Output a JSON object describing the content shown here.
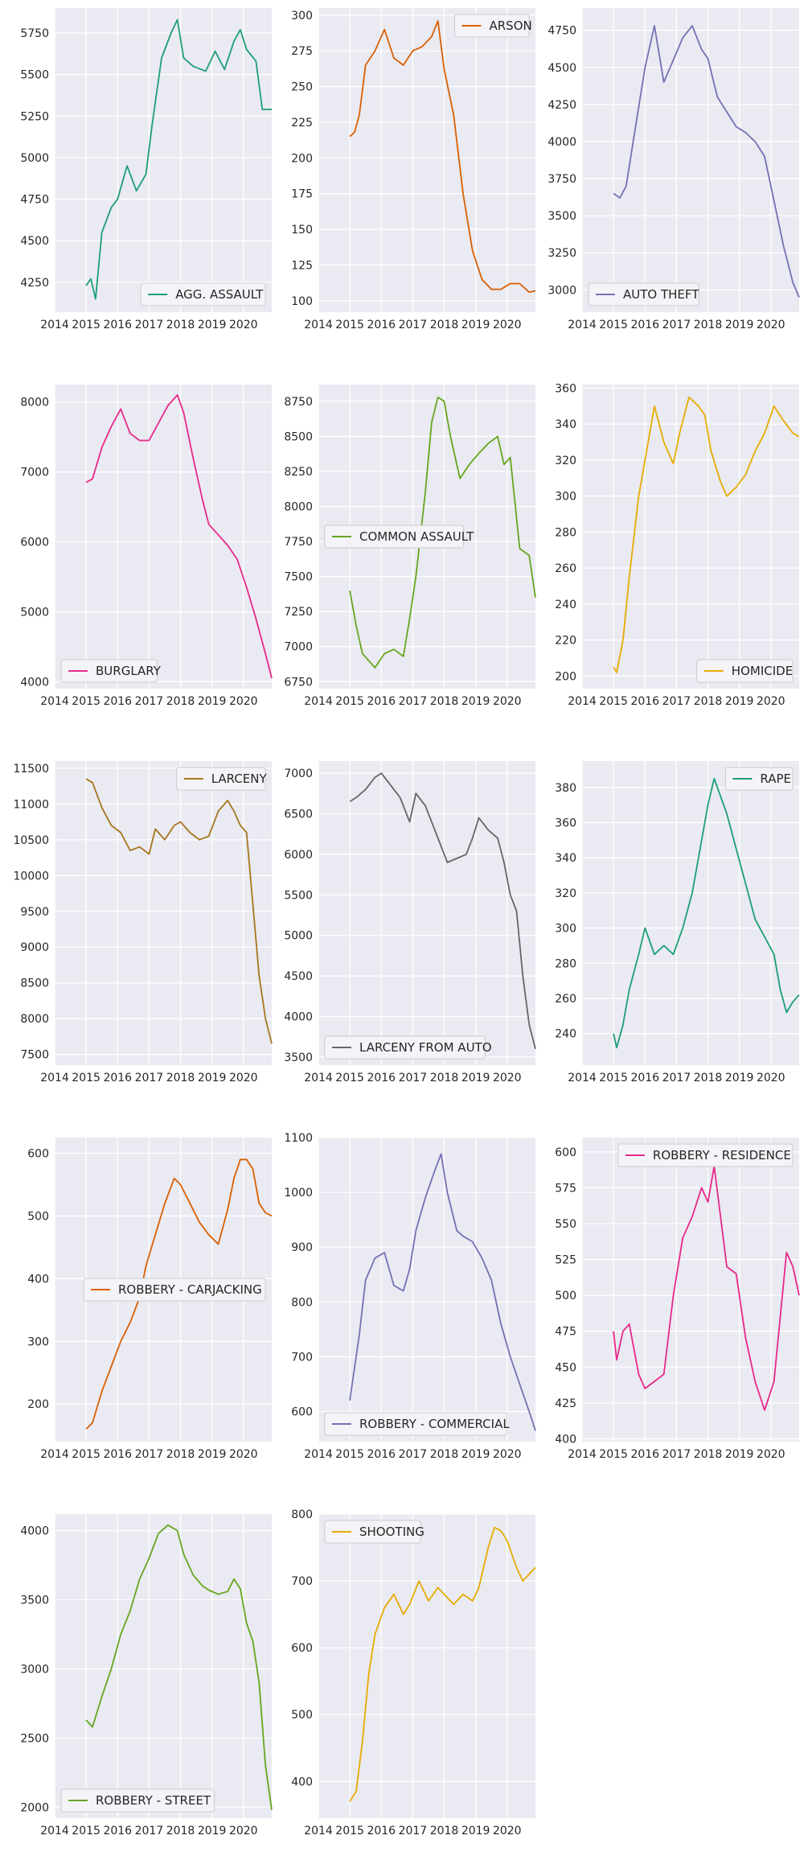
{
  "chart_data": [
    {
      "type": "line",
      "legend": "AGG. ASSAULT",
      "legend_loc": "lower right",
      "color": "#1b9e77",
      "xlim": [
        2014,
        2020.9
      ],
      "ylim": [
        4070,
        5900
      ],
      "xticks": [
        2014,
        2015,
        2016,
        2017,
        2018,
        2019,
        2020
      ],
      "yticks": [
        4250,
        4500,
        4750,
        5000,
        5250,
        5500,
        5750
      ],
      "x": [
        2015.0,
        2015.15,
        2015.3,
        2015.5,
        2015.8,
        2016.0,
        2016.3,
        2016.6,
        2016.9,
        2017.1,
        2017.4,
        2017.7,
        2017.9,
        2018.1,
        2018.4,
        2018.8,
        2019.1,
        2019.4,
        2019.7,
        2019.9,
        2020.1,
        2020.4,
        2020.6,
        2020.9
      ],
      "y": [
        4230,
        4270,
        4150,
        4550,
        4700,
        4750,
        4950,
        4800,
        4900,
        5200,
        5600,
        5750,
        5830,
        5600,
        5550,
        5520,
        5640,
        5530,
        5700,
        5770,
        5650,
        5580,
        5290,
        5290
      ]
    },
    {
      "type": "line",
      "legend": "ARSON",
      "legend_loc": "upper right",
      "color": "#d95f02",
      "xlim": [
        2014,
        2020.9
      ],
      "ylim": [
        92,
        305
      ],
      "xticks": [
        2014,
        2015,
        2016,
        2017,
        2018,
        2019,
        2020
      ],
      "yticks": [
        100,
        125,
        150,
        175,
        200,
        225,
        250,
        275,
        300
      ],
      "x": [
        2015.0,
        2015.15,
        2015.3,
        2015.5,
        2015.8,
        2016.1,
        2016.4,
        2016.7,
        2017.0,
        2017.3,
        2017.6,
        2017.8,
        2018.0,
        2018.3,
        2018.6,
        2018.9,
        2019.2,
        2019.5,
        2019.8,
        2020.1,
        2020.4,
        2020.7,
        2020.9
      ],
      "y": [
        215,
        218,
        230,
        265,
        275,
        290,
        270,
        265,
        275,
        278,
        285,
        296,
        262,
        230,
        175,
        135,
        115,
        108,
        108,
        112,
        112,
        106,
        107
      ]
    },
    {
      "type": "line",
      "legend": "AUTO THEFT",
      "legend_loc": "lower left",
      "color": "#7570b3",
      "xlim": [
        2014,
        2020.9
      ],
      "ylim": [
        2850,
        4900
      ],
      "xticks": [
        2014,
        2015,
        2016,
        2017,
        2018,
        2019,
        2020
      ],
      "yticks": [
        3000,
        3250,
        3500,
        3750,
        4000,
        4250,
        4500,
        4750
      ],
      "x": [
        2015.0,
        2015.2,
        2015.4,
        2015.7,
        2016.0,
        2016.3,
        2016.6,
        2016.9,
        2017.2,
        2017.5,
        2017.8,
        2018.0,
        2018.3,
        2018.6,
        2018.9,
        2019.2,
        2019.5,
        2019.8,
        2020.1,
        2020.4,
        2020.7,
        2020.9
      ],
      "y": [
        3650,
        3620,
        3700,
        4100,
        4500,
        4780,
        4400,
        4550,
        4700,
        4780,
        4620,
        4560,
        4300,
        4200,
        4100,
        4060,
        4000,
        3900,
        3600,
        3300,
        3050,
        2950
      ]
    },
    {
      "type": "line",
      "legend": "BURGLARY",
      "legend_loc": "lower left",
      "color": "#e7298a",
      "xlim": [
        2014,
        2020.9
      ],
      "ylim": [
        3900,
        8250
      ],
      "xticks": [
        2014,
        2015,
        2016,
        2017,
        2018,
        2019,
        2020
      ],
      "yticks": [
        4000,
        5000,
        6000,
        7000,
        8000
      ],
      "x": [
        2015.0,
        2015.2,
        2015.5,
        2015.8,
        2016.1,
        2016.4,
        2016.7,
        2017.0,
        2017.3,
        2017.6,
        2017.9,
        2018.1,
        2018.4,
        2018.7,
        2018.9,
        2019.2,
        2019.5,
        2019.8,
        2020.1,
        2020.4,
        2020.7,
        2020.9
      ],
      "y": [
        6850,
        6900,
        7350,
        7650,
        7900,
        7550,
        7450,
        7450,
        7700,
        7950,
        8100,
        7850,
        7200,
        6600,
        6250,
        6100,
        5950,
        5750,
        5350,
        4900,
        4400,
        4050
      ]
    },
    {
      "type": "line",
      "legend": "COMMON ASSAULT",
      "legend_loc": "center left",
      "color": "#66a61e",
      "xlim": [
        2014,
        2020.9
      ],
      "ylim": [
        6700,
        8870
      ],
      "xticks": [
        2014,
        2015,
        2016,
        2017,
        2018,
        2019,
        2020
      ],
      "yticks": [
        6750,
        7000,
        7250,
        7500,
        7750,
        8000,
        8250,
        8500,
        8750
      ],
      "x": [
        2015.0,
        2015.2,
        2015.4,
        2015.6,
        2015.8,
        2016.1,
        2016.4,
        2016.7,
        2016.9,
        2017.1,
        2017.4,
        2017.6,
        2017.8,
        2018.0,
        2018.2,
        2018.5,
        2018.8,
        2019.1,
        2019.4,
        2019.7,
        2019.9,
        2020.1,
        2020.4,
        2020.7,
        2020.9
      ],
      "y": [
        7400,
        7150,
        6950,
        6900,
        6850,
        6950,
        6980,
        6930,
        7200,
        7500,
        8100,
        8600,
        8780,
        8750,
        8500,
        8200,
        8300,
        8380,
        8450,
        8500,
        8300,
        8350,
        7700,
        7650,
        7350
      ]
    },
    {
      "type": "line",
      "legend": "HOMICIDE",
      "legend_loc": "lower right",
      "color": "#e6ab02",
      "xlim": [
        2014,
        2020.9
      ],
      "ylim": [
        193,
        362
      ],
      "xticks": [
        2014,
        2015,
        2016,
        2017,
        2018,
        2019,
        2020
      ],
      "yticks": [
        200,
        220,
        240,
        260,
        280,
        300,
        320,
        340,
        360
      ],
      "x": [
        2015.0,
        2015.1,
        2015.3,
        2015.5,
        2015.8,
        2016.1,
        2016.3,
        2016.6,
        2016.9,
        2017.1,
        2017.4,
        2017.7,
        2017.9,
        2018.1,
        2018.4,
        2018.6,
        2018.9,
        2019.2,
        2019.5,
        2019.8,
        2020.1,
        2020.4,
        2020.7,
        2020.9
      ],
      "y": [
        205,
        202,
        220,
        255,
        300,
        330,
        350,
        330,
        318,
        335,
        355,
        350,
        345,
        325,
        308,
        300,
        305,
        312,
        325,
        335,
        350,
        342,
        335,
        333
      ]
    },
    {
      "type": "line",
      "legend": "LARCENY",
      "legend_loc": "upper right",
      "color": "#a6761d",
      "xlim": [
        2014,
        2020.9
      ],
      "ylim": [
        7350,
        11600
      ],
      "xticks": [
        2014,
        2015,
        2016,
        2017,
        2018,
        2019,
        2020
      ],
      "yticks": [
        7500,
        8000,
        8500,
        9000,
        9500,
        10000,
        10500,
        11000,
        11500
      ],
      "x": [
        2015.0,
        2015.2,
        2015.5,
        2015.8,
        2016.1,
        2016.4,
        2016.7,
        2017.0,
        2017.2,
        2017.5,
        2017.8,
        2018.0,
        2018.3,
        2018.6,
        2018.9,
        2019.2,
        2019.5,
        2019.7,
        2019.9,
        2020.1,
        2020.3,
        2020.5,
        2020.7,
        2020.9
      ],
      "y": [
        11350,
        11300,
        10950,
        10700,
        10600,
        10350,
        10400,
        10300,
        10650,
        10500,
        10700,
        10750,
        10600,
        10500,
        10550,
        10900,
        11050,
        10900,
        10700,
        10600,
        9600,
        8600,
        8000,
        7650
      ]
    },
    {
      "type": "line",
      "legend": "LARCENY FROM AUTO",
      "legend_loc": "lower left",
      "color": "#666666",
      "xlim": [
        2014,
        2020.9
      ],
      "ylim": [
        3400,
        7150
      ],
      "xticks": [
        2014,
        2015,
        2016,
        2017,
        2018,
        2019,
        2020
      ],
      "yticks": [
        3500,
        4000,
        4500,
        5000,
        5500,
        6000,
        6500,
        7000
      ],
      "x": [
        2015.0,
        2015.2,
        2015.5,
        2015.8,
        2016.0,
        2016.3,
        2016.6,
        2016.9,
        2017.1,
        2017.4,
        2017.7,
        2017.9,
        2018.1,
        2018.4,
        2018.7,
        2018.9,
        2019.1,
        2019.4,
        2019.7,
        2019.9,
        2020.1,
        2020.3,
        2020.5,
        2020.7,
        2020.9
      ],
      "y": [
        6650,
        6700,
        6800,
        6950,
        7000,
        6850,
        6700,
        6400,
        6750,
        6600,
        6300,
        6100,
        5900,
        5950,
        6000,
        6200,
        6450,
        6300,
        6200,
        5900,
        5500,
        5300,
        4500,
        3900,
        3600
      ]
    },
    {
      "type": "line",
      "legend": "RAPE",
      "legend_loc": "upper right",
      "color": "#1b9e77",
      "xlim": [
        2014,
        2020.9
      ],
      "ylim": [
        222,
        395
      ],
      "xticks": [
        2014,
        2015,
        2016,
        2017,
        2018,
        2019,
        2020
      ],
      "yticks": [
        240,
        260,
        280,
        300,
        320,
        340,
        360,
        380
      ],
      "x": [
        2015.0,
        2015.1,
        2015.3,
        2015.5,
        2015.8,
        2016.0,
        2016.3,
        2016.6,
        2016.9,
        2017.2,
        2017.5,
        2017.8,
        2018.0,
        2018.2,
        2018.4,
        2018.6,
        2018.9,
        2019.2,
        2019.5,
        2019.8,
        2020.1,
        2020.3,
        2020.5,
        2020.7,
        2020.9
      ],
      "y": [
        240,
        232,
        245,
        265,
        285,
        300,
        285,
        290,
        285,
        300,
        320,
        350,
        370,
        385,
        375,
        365,
        345,
        325,
        305,
        295,
        285,
        265,
        252,
        258,
        262
      ]
    },
    {
      "type": "line",
      "legend": "ROBBERY - CARJACKING",
      "legend_loc": "center right",
      "color": "#d95f02",
      "xlim": [
        2014,
        2020.9
      ],
      "ylim": [
        140,
        625
      ],
      "xticks": [
        2014,
        2015,
        2016,
        2017,
        2018,
        2019,
        2020
      ],
      "yticks": [
        200,
        300,
        400,
        500,
        600
      ],
      "x": [
        2015.0,
        2015.2,
        2015.5,
        2015.8,
        2016.1,
        2016.4,
        2016.7,
        2016.9,
        2017.2,
        2017.5,
        2017.8,
        2018.0,
        2018.3,
        2018.6,
        2018.9,
        2019.2,
        2019.5,
        2019.7,
        2019.9,
        2020.1,
        2020.3,
        2020.5,
        2020.7,
        2020.9
      ],
      "y": [
        160,
        170,
        220,
        260,
        300,
        330,
        370,
        420,
        470,
        520,
        560,
        550,
        520,
        490,
        470,
        455,
        510,
        560,
        590,
        590,
        575,
        520,
        505,
        500
      ]
    },
    {
      "type": "line",
      "legend": "ROBBERY - COMMERCIAL",
      "legend_loc": "lower left",
      "color": "#7570b3",
      "xlim": [
        2014,
        2020.9
      ],
      "ylim": [
        545,
        1100
      ],
      "xticks": [
        2014,
        2015,
        2016,
        2017,
        2018,
        2019,
        2020
      ],
      "yticks": [
        600,
        700,
        800,
        900,
        1000,
        1100
      ],
      "x": [
        2015.0,
        2015.1,
        2015.3,
        2015.5,
        2015.8,
        2016.1,
        2016.4,
        2016.7,
        2016.9,
        2017.1,
        2017.4,
        2017.7,
        2017.9,
        2018.1,
        2018.4,
        2018.6,
        2018.9,
        2019.2,
        2019.5,
        2019.8,
        2020.1,
        2020.4,
        2020.7,
        2020.9
      ],
      "y": [
        620,
        660,
        740,
        840,
        880,
        890,
        830,
        820,
        860,
        930,
        990,
        1040,
        1070,
        1000,
        930,
        920,
        910,
        880,
        840,
        760,
        700,
        650,
        600,
        565
      ]
    },
    {
      "type": "line",
      "legend": "ROBBERY - RESIDENCE",
      "legend_loc": "upper right",
      "color": "#e7298a",
      "xlim": [
        2014,
        2020.9
      ],
      "ylim": [
        398,
        610
      ],
      "xticks": [
        2014,
        2015,
        2016,
        2017,
        2018,
        2019,
        2020
      ],
      "yticks": [
        400,
        425,
        450,
        475,
        500,
        525,
        550,
        575,
        600
      ],
      "x": [
        2015.0,
        2015.1,
        2015.3,
        2015.5,
        2015.8,
        2016.0,
        2016.3,
        2016.6,
        2016.9,
        2017.2,
        2017.5,
        2017.8,
        2018.0,
        2018.2,
        2018.4,
        2018.6,
        2018.9,
        2019.2,
        2019.5,
        2019.8,
        2020.1,
        2020.3,
        2020.5,
        2020.7,
        2020.9
      ],
      "y": [
        475,
        455,
        475,
        480,
        445,
        435,
        440,
        445,
        500,
        540,
        555,
        575,
        565,
        590,
        555,
        520,
        515,
        470,
        440,
        420,
        440,
        485,
        530,
        520,
        500
      ]
    },
    {
      "type": "line",
      "legend": "ROBBERY - STREET",
      "legend_loc": "lower left",
      "color": "#66a61e",
      "xlim": [
        2014,
        2020.9
      ],
      "ylim": [
        1920,
        4120
      ],
      "xticks": [
        2014,
        2015,
        2016,
        2017,
        2018,
        2019,
        2020
      ],
      "yticks": [
        2000,
        2500,
        3000,
        3500,
        4000
      ],
      "x": [
        2015.0,
        2015.2,
        2015.5,
        2015.8,
        2016.1,
        2016.4,
        2016.7,
        2017.0,
        2017.3,
        2017.6,
        2017.9,
        2018.1,
        2018.4,
        2018.7,
        2018.9,
        2019.2,
        2019.5,
        2019.7,
        2019.9,
        2020.1,
        2020.3,
        2020.5,
        2020.7,
        2020.9
      ],
      "y": [
        2630,
        2580,
        2800,
        3000,
        3250,
        3420,
        3650,
        3800,
        3980,
        4040,
        4000,
        3830,
        3680,
        3600,
        3570,
        3540,
        3560,
        3650,
        3580,
        3330,
        3200,
        2900,
        2300,
        1980
      ]
    },
    {
      "type": "line",
      "legend": "SHOOTING",
      "legend_loc": "upper left",
      "color": "#e6ab02",
      "xlim": [
        2014,
        2020.9
      ],
      "ylim": [
        345,
        800
      ],
      "xticks": [
        2014,
        2015,
        2016,
        2017,
        2018,
        2019,
        2020
      ],
      "yticks": [
        400,
        500,
        600,
        700,
        800
      ],
      "x": [
        2015.0,
        2015.2,
        2015.4,
        2015.6,
        2015.8,
        2016.1,
        2016.4,
        2016.7,
        2016.9,
        2017.2,
        2017.5,
        2017.8,
        2018.0,
        2018.3,
        2018.6,
        2018.9,
        2019.1,
        2019.4,
        2019.6,
        2019.8,
        2020.0,
        2020.3,
        2020.5,
        2020.7,
        2020.9
      ],
      "y": [
        370,
        385,
        460,
        560,
        620,
        660,
        680,
        650,
        665,
        700,
        670,
        690,
        680,
        665,
        680,
        670,
        690,
        750,
        780,
        775,
        760,
        720,
        700,
        710,
        720
      ]
    }
  ]
}
